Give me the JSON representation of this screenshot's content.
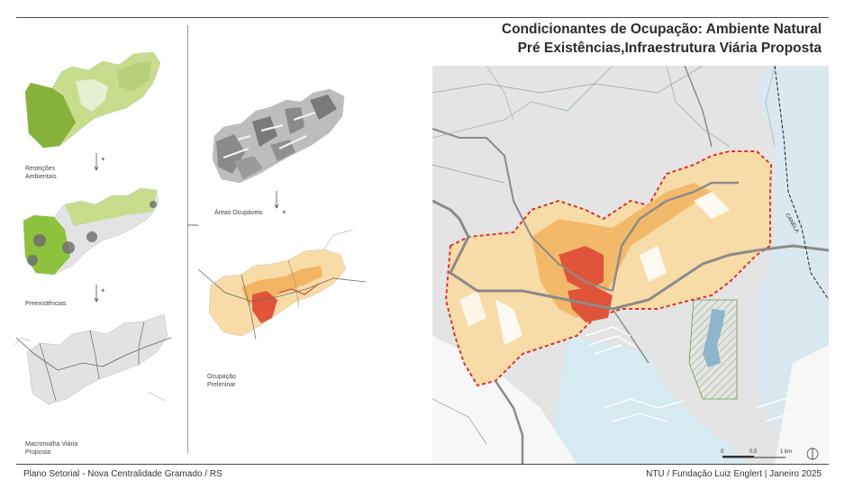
{
  "title": {
    "line1": "Condicionantes de Ocupação: Ambiente Natural",
    "line2": "Pré Existências,Infraestrutura Viária  Proposta"
  },
  "steps": {
    "restricoes": "Restrições\nAmbientais",
    "preexistencias": "Preexistências",
    "macromalha": "Macromalha Viária\nProposta",
    "areas": "Áreas Ocupáveis",
    "ocupacao": "Ocupação\nPreliminar",
    "plus": "+"
  },
  "map": {
    "road_label": "CANELA",
    "scale": {
      "zero": "0",
      "half": "0,5",
      "one": "1 km"
    }
  },
  "footer": {
    "left": "Plano Setorial - Nova Centralidade Gramado / RS",
    "right": "NTU / Fundação Luiz Englert | Janeiro 2025"
  },
  "colors": {
    "green_dark": "#86b23a",
    "green_light": "#c8dc8e",
    "orange_light": "#f8dca8",
    "orange_mid": "#f2b563",
    "red": "#e0553a",
    "boundary": "#d8352a",
    "water": "#cfe7f2"
  }
}
